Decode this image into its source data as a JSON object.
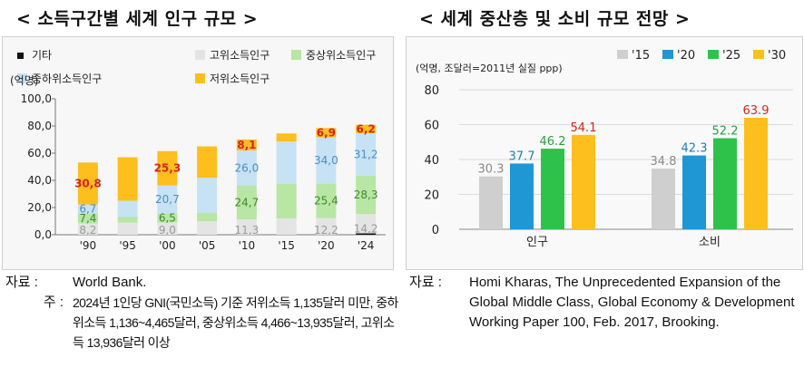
{
  "left_panel": {
    "title": "< 소득구간별 세계 인구 규모 >",
    "unit_label": "(억명)",
    "source_key": "자료 :",
    "source_text": "World Bank.",
    "note_key": "주 :",
    "note_text": "2024년 1인당 GNI(국민소득) 기준 저위소득 1,135달러 미만, 중하위소득 1,136~4,465달러, 중상위소득 4,466~13,935달러, 고위소득 13,936달러 이상"
  },
  "right_panel": {
    "title": "< 세계 중산층 및 소비 규모 전망 >",
    "unit_label": "(억명, 조달러=2011년 실질 ppp)",
    "source_key": "자료 :",
    "source_text": "Homi Kharas, The Unprecedented Expansion of the Global Middle Class, Global Economy & Development Working Paper 100, Feb. 2017, Brooking."
  },
  "colors": {
    "low": "#fcbf1e",
    "lower_middle": "#c7e2f4",
    "upper_middle": "#b8e6a4",
    "high": "#e4e4e4",
    "other": "#111111",
    "label_low": "#d8231c",
    "label_lower_middle": "#4a8fc0",
    "label_upper_middle": "#3f8a2c",
    "label_high": "#999999",
    "s15": "#cfcfcf",
    "s20": "#1f97d4",
    "s25": "#2fc24a",
    "s30": "#fcbf1e"
  },
  "chart_data": [
    {
      "type": "bar",
      "stacked": true,
      "categories": [
        "'90",
        "'95",
        "'00",
        "'05",
        "'10",
        "'15",
        "'20",
        "'24"
      ],
      "ylim": [
        0,
        100
      ],
      "yticks": [
        "0,0",
        "20,0",
        "40,0",
        "60,0",
        "80,0",
        "100,0"
      ],
      "ylabel": "(억명)",
      "legend": [
        "기타",
        "고위소득인구",
        "중상위소득인구",
        "중하위소득인구",
        "저위소득인구"
      ],
      "series": [
        {
          "name": "기타",
          "key": "other",
          "values": [
            0,
            0,
            0,
            0,
            0,
            0,
            0,
            1.0
          ]
        },
        {
          "name": "고위소득인구",
          "key": "high",
          "values": [
            8.2,
            9.0,
            9.0,
            10.0,
            11.3,
            12.0,
            12.2,
            14.2
          ]
        },
        {
          "name": "중상위소득인구",
          "key": "upper_middle",
          "values": [
            7.4,
            4.0,
            6.5,
            6.0,
            24.7,
            25.5,
            25.4,
            28.3
          ]
        },
        {
          "name": "중하위소득인구",
          "key": "lower_middle",
          "values": [
            6.7,
            12.0,
            20.7,
            26.0,
            26.0,
            31.0,
            34.0,
            31.2
          ]
        },
        {
          "name": "저위소득인구",
          "key": "low",
          "values": [
            30.8,
            32.0,
            25.3,
            23.0,
            8.1,
            6.0,
            6.9,
            6.2
          ]
        }
      ],
      "data_labels": [
        {
          "cat": 0,
          "series": "low",
          "text": "30,8"
        },
        {
          "cat": 0,
          "series": "lower_middle",
          "text": "6,7"
        },
        {
          "cat": 0,
          "series": "upper_middle",
          "text": "7,4"
        },
        {
          "cat": 0,
          "series": "high",
          "text": "8,2"
        },
        {
          "cat": 2,
          "series": "low",
          "text": "25,3"
        },
        {
          "cat": 2,
          "series": "lower_middle",
          "text": "20,7"
        },
        {
          "cat": 2,
          "series": "upper_middle",
          "text": "6,5"
        },
        {
          "cat": 2,
          "series": "high",
          "text": "9,0"
        },
        {
          "cat": 4,
          "series": "low",
          "text": "8,1"
        },
        {
          "cat": 4,
          "series": "lower_middle",
          "text": "26,0"
        },
        {
          "cat": 4,
          "series": "upper_middle",
          "text": "24,7"
        },
        {
          "cat": 4,
          "series": "high",
          "text": "11,3"
        },
        {
          "cat": 6,
          "series": "low",
          "text": "6,9"
        },
        {
          "cat": 6,
          "series": "lower_middle",
          "text": "34,0"
        },
        {
          "cat": 6,
          "series": "upper_middle",
          "text": "25,4"
        },
        {
          "cat": 6,
          "series": "high",
          "text": "12,2"
        },
        {
          "cat": 7,
          "series": "low",
          "text": "6,2"
        },
        {
          "cat": 7,
          "series": "lower_middle",
          "text": "31,2"
        },
        {
          "cat": 7,
          "series": "upper_middle",
          "text": "28,3"
        },
        {
          "cat": 7,
          "series": "high",
          "text": "14,2"
        }
      ]
    },
    {
      "type": "bar",
      "categories": [
        "인구",
        "소비"
      ],
      "ylim": [
        0,
        80
      ],
      "yticks": [
        "0",
        "20",
        "40",
        "60",
        "80"
      ],
      "ylabel": "(억명, 조달러=2011년 실질 ppp)",
      "grid": true,
      "legend_position": "top",
      "series": [
        {
          "name": "'15",
          "key": "s15",
          "values": [
            30.3,
            34.8
          ],
          "labels": [
            "30.3",
            "34.8"
          ]
        },
        {
          "name": "'20",
          "key": "s20",
          "values": [
            37.7,
            42.3
          ],
          "labels": [
            "37.7",
            "42.3"
          ]
        },
        {
          "name": "'25",
          "key": "s25",
          "values": [
            46.2,
            52.2
          ],
          "labels": [
            "46.2",
            "52.2"
          ]
        },
        {
          "name": "'30",
          "key": "s30",
          "values": [
            54.1,
            63.9
          ],
          "labels": [
            "54.1",
            "63.9"
          ]
        }
      ]
    }
  ]
}
